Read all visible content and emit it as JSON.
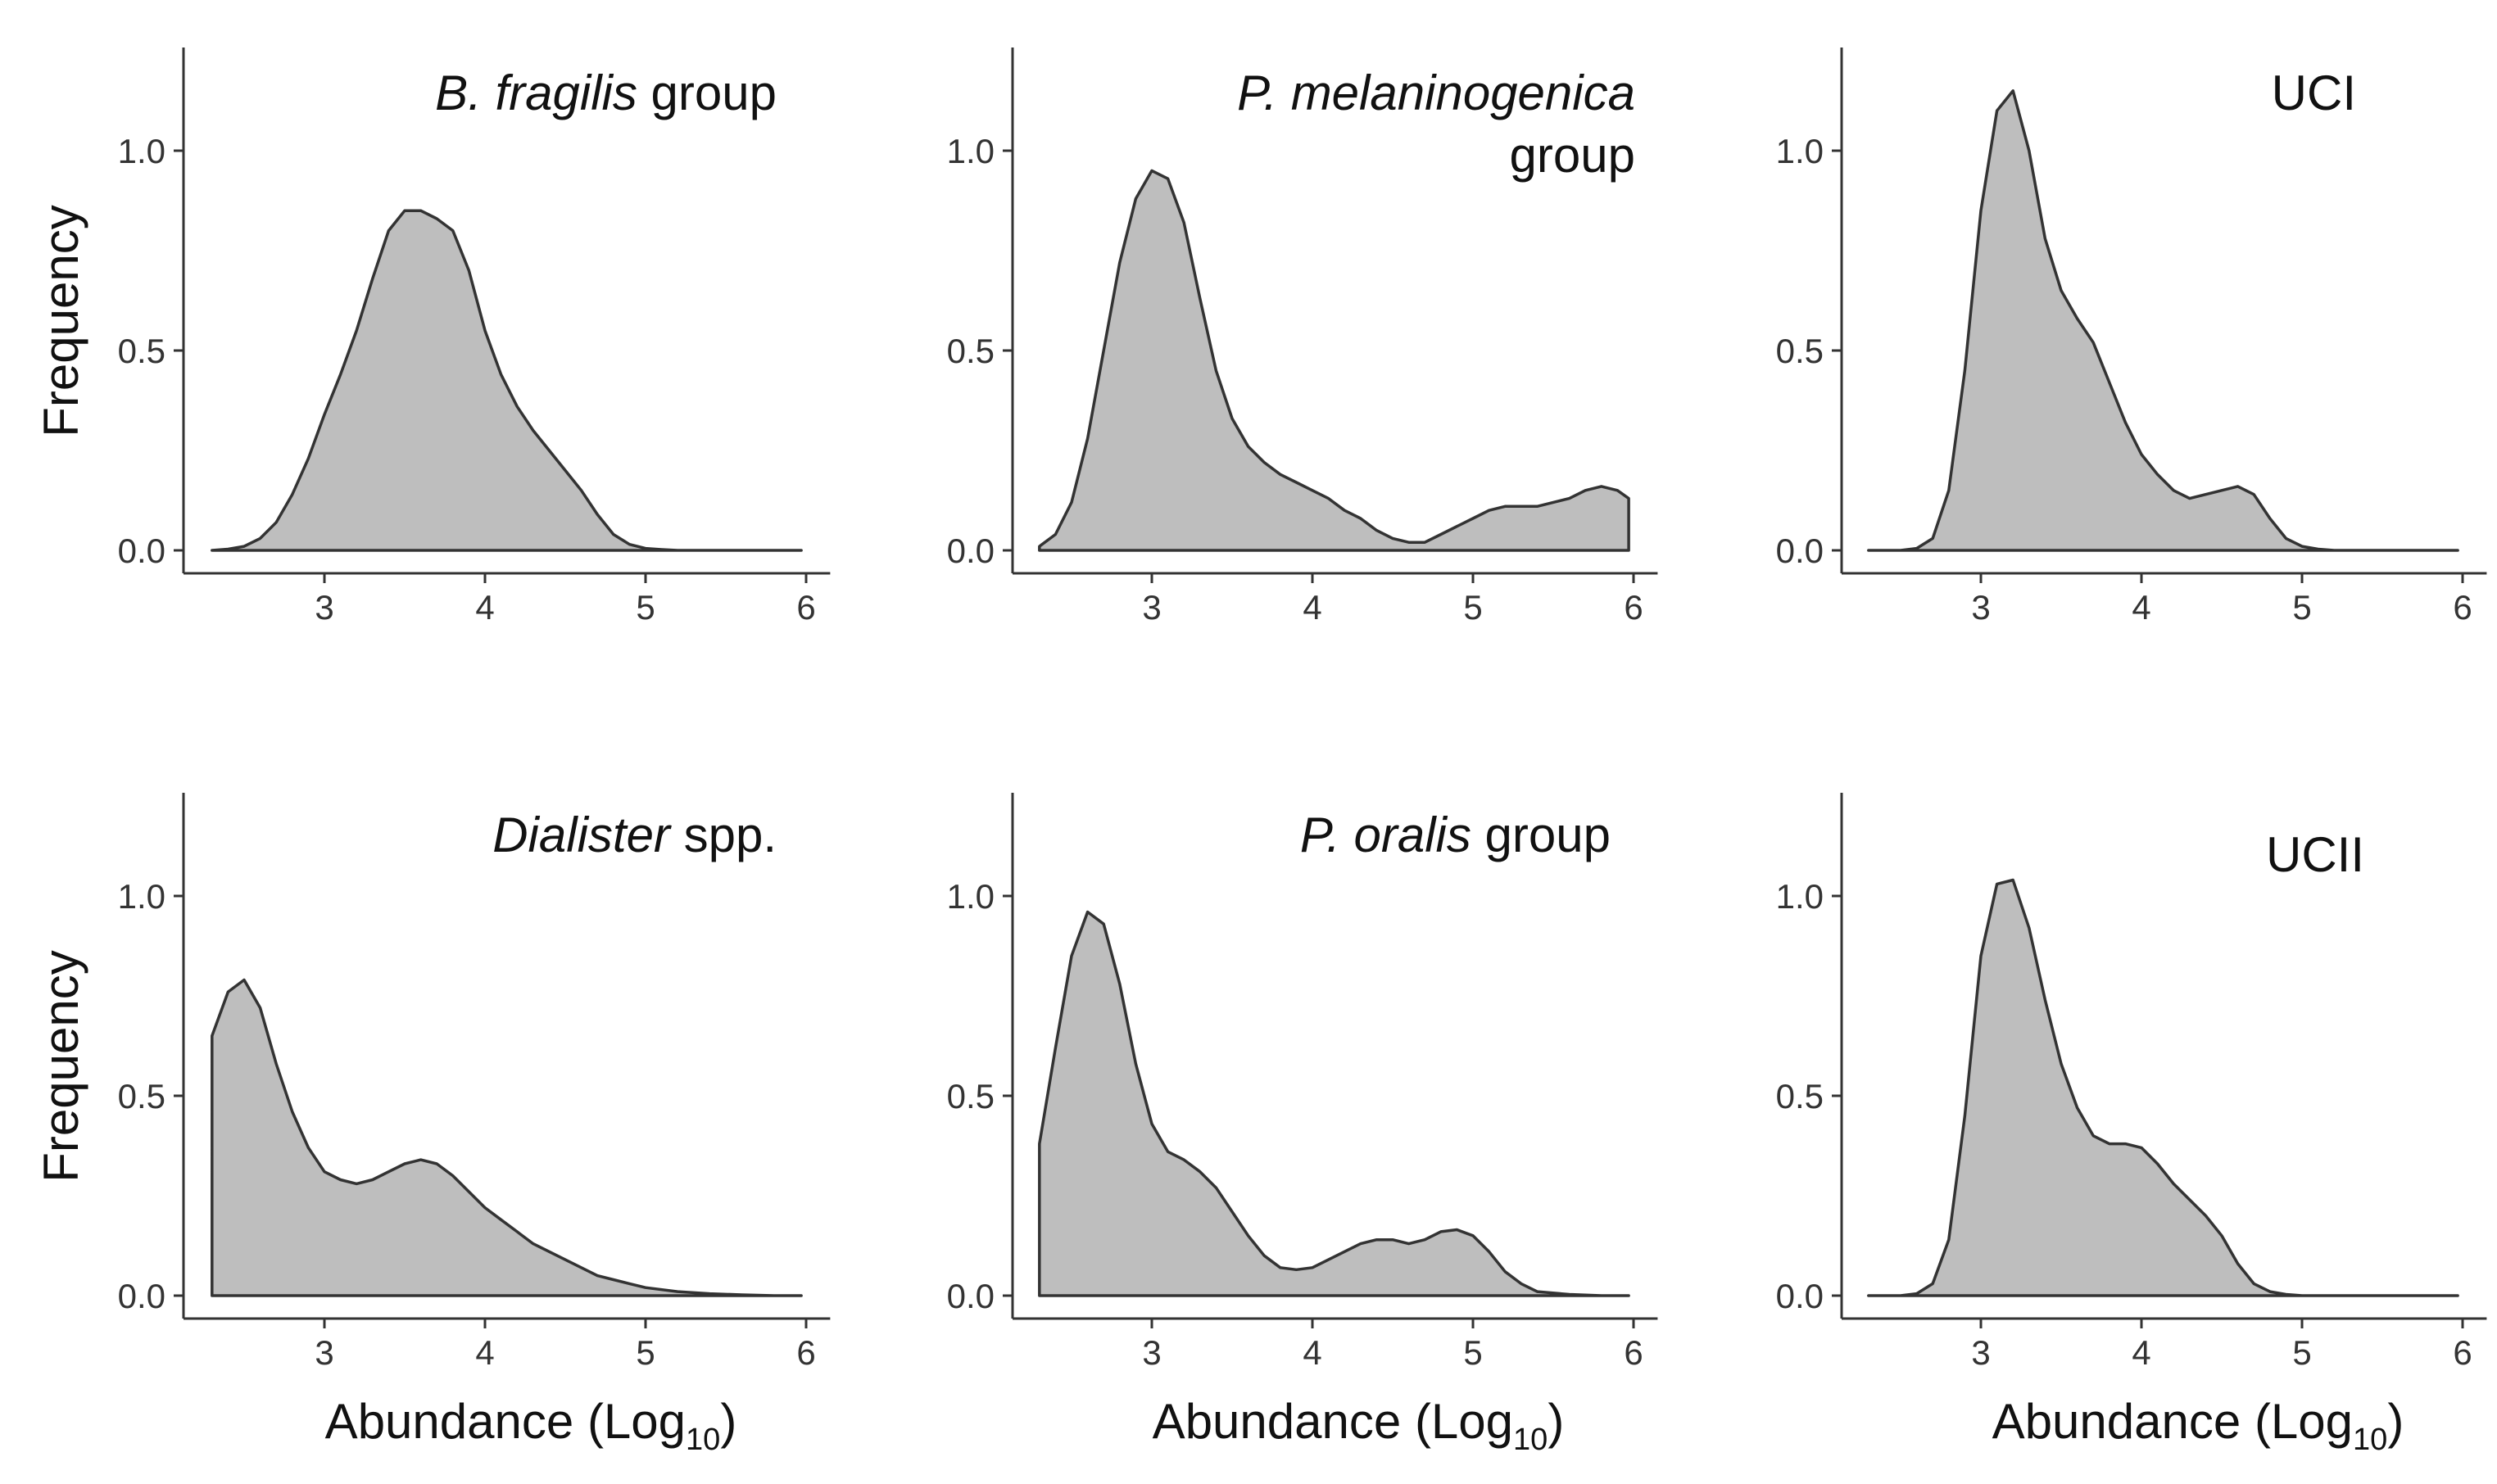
{
  "figure": {
    "ylabel": "Frequency",
    "xlabel_main": "Abundance (Log",
    "xlabel_sub": "10",
    "xlabel_close": ")"
  },
  "chart_data": [
    {
      "type": "area",
      "title_parts": [
        {
          "text": "B. fragilis",
          "italic": true
        },
        {
          "text": " group",
          "italic": false
        }
      ],
      "fill_color": "#bebebe",
      "line_color": "#333333",
      "xlim": [
        2.1,
        6.15
      ],
      "ylim": [
        -0.05,
        1.25
      ],
      "xticks": [
        3,
        4,
        5,
        6
      ],
      "yticks": [
        0.0,
        0.5,
        1.0
      ],
      "ytick_labels": [
        "0.0",
        "0.5",
        "1.0"
      ],
      "x": [
        2.3,
        2.4,
        2.5,
        2.6,
        2.7,
        2.8,
        2.9,
        3.0,
        3.1,
        3.2,
        3.3,
        3.4,
        3.5,
        3.6,
        3.7,
        3.8,
        3.9,
        4.0,
        4.1,
        4.2,
        4.3,
        4.4,
        4.5,
        4.6,
        4.7,
        4.8,
        4.9,
        5.0,
        5.1,
        5.2,
        5.4,
        5.6,
        5.8,
        5.97
      ],
      "y": [
        0.0,
        0.003,
        0.01,
        0.03,
        0.07,
        0.14,
        0.23,
        0.34,
        0.44,
        0.55,
        0.68,
        0.8,
        0.85,
        0.85,
        0.83,
        0.8,
        0.7,
        0.55,
        0.44,
        0.36,
        0.3,
        0.25,
        0.2,
        0.15,
        0.09,
        0.04,
        0.015,
        0.005,
        0.002,
        0.0,
        0.0,
        0.0,
        0.0,
        0.0
      ]
    },
    {
      "type": "area",
      "title_parts": [
        {
          "text": "P. melaninogenica",
          "italic": true
        },
        {
          "text": "group",
          "italic": false,
          "newline": true
        }
      ],
      "fill_color": "#bebebe",
      "line_color": "#333333",
      "xlim": [
        2.1,
        6.15
      ],
      "ylim": [
        -0.05,
        1.25
      ],
      "xticks": [
        3,
        4,
        5,
        6
      ],
      "yticks": [
        0.0,
        0.5,
        1.0
      ],
      "ytick_labels": [
        "0.0",
        "0.5",
        "1.0"
      ],
      "x": [
        2.3,
        2.4,
        2.5,
        2.6,
        2.7,
        2.8,
        2.9,
        3.0,
        3.1,
        3.2,
        3.3,
        3.4,
        3.5,
        3.6,
        3.7,
        3.8,
        3.9,
        4.0,
        4.1,
        4.2,
        4.3,
        4.4,
        4.5,
        4.6,
        4.7,
        4.8,
        4.9,
        5.0,
        5.1,
        5.2,
        5.3,
        5.4,
        5.5,
        5.6,
        5.7,
        5.8,
        5.9,
        5.97
      ],
      "y": [
        0.01,
        0.04,
        0.12,
        0.28,
        0.5,
        0.72,
        0.88,
        0.95,
        0.93,
        0.82,
        0.63,
        0.45,
        0.33,
        0.26,
        0.22,
        0.19,
        0.17,
        0.15,
        0.13,
        0.1,
        0.08,
        0.05,
        0.03,
        0.02,
        0.02,
        0.04,
        0.06,
        0.08,
        0.1,
        0.11,
        0.11,
        0.11,
        0.12,
        0.13,
        0.15,
        0.16,
        0.15,
        0.13
      ]
    },
    {
      "type": "area",
      "title_parts": [
        {
          "text": "UCI",
          "italic": false
        }
      ],
      "fill_color": "#bebebe",
      "line_color": "#333333",
      "xlim": [
        2.1,
        6.15
      ],
      "ylim": [
        -0.05,
        1.25
      ],
      "xticks": [
        3,
        4,
        5,
        6
      ],
      "yticks": [
        0.0,
        0.5,
        1.0
      ],
      "ytick_labels": [
        "0.0",
        "0.5",
        "1.0"
      ],
      "x": [
        2.3,
        2.5,
        2.6,
        2.7,
        2.8,
        2.9,
        3.0,
        3.1,
        3.2,
        3.3,
        3.4,
        3.5,
        3.6,
        3.7,
        3.8,
        3.9,
        4.0,
        4.1,
        4.2,
        4.3,
        4.4,
        4.5,
        4.6,
        4.7,
        4.8,
        4.9,
        5.0,
        5.1,
        5.2,
        5.4,
        5.6,
        5.8,
        5.97
      ],
      "y": [
        0.0,
        0.0,
        0.005,
        0.03,
        0.15,
        0.45,
        0.85,
        1.1,
        1.15,
        1.0,
        0.78,
        0.65,
        0.58,
        0.52,
        0.42,
        0.32,
        0.24,
        0.19,
        0.15,
        0.13,
        0.14,
        0.15,
        0.16,
        0.14,
        0.08,
        0.03,
        0.01,
        0.003,
        0.0,
        0.0,
        0.0,
        0.0,
        0.0
      ]
    },
    {
      "type": "area",
      "title_parts": [
        {
          "text": "Dialister",
          "italic": true
        },
        {
          "text": " spp.",
          "italic": false
        }
      ],
      "fill_color": "#bebebe",
      "line_color": "#333333",
      "xlim": [
        2.1,
        6.15
      ],
      "ylim": [
        -0.05,
        1.25
      ],
      "xticks": [
        3,
        4,
        5,
        6
      ],
      "yticks": [
        0.0,
        0.5,
        1.0
      ],
      "ytick_labels": [
        "0.0",
        "0.5",
        "1.0"
      ],
      "x": [
        2.3,
        2.4,
        2.5,
        2.6,
        2.7,
        2.8,
        2.9,
        3.0,
        3.1,
        3.2,
        3.3,
        3.4,
        3.5,
        3.6,
        3.7,
        3.8,
        3.9,
        4.0,
        4.1,
        4.2,
        4.3,
        4.4,
        4.5,
        4.6,
        4.7,
        4.8,
        4.9,
        5.0,
        5.2,
        5.4,
        5.6,
        5.8,
        5.97
      ],
      "y": [
        0.65,
        0.76,
        0.79,
        0.72,
        0.58,
        0.46,
        0.37,
        0.31,
        0.29,
        0.28,
        0.29,
        0.31,
        0.33,
        0.34,
        0.33,
        0.3,
        0.26,
        0.22,
        0.19,
        0.16,
        0.13,
        0.11,
        0.09,
        0.07,
        0.05,
        0.04,
        0.03,
        0.02,
        0.01,
        0.005,
        0.002,
        0.0,
        0.0
      ]
    },
    {
      "type": "area",
      "title_parts": [
        {
          "text": "P. oralis",
          "italic": true
        },
        {
          "text": " group",
          "italic": false
        }
      ],
      "fill_color": "#bebebe",
      "line_color": "#333333",
      "xlim": [
        2.1,
        6.15
      ],
      "ylim": [
        -0.05,
        1.25
      ],
      "xticks": [
        3,
        4,
        5,
        6
      ],
      "yticks": [
        0.0,
        0.5,
        1.0
      ],
      "ytick_labels": [
        "0.0",
        "0.5",
        "1.0"
      ],
      "x": [
        2.3,
        2.4,
        2.5,
        2.6,
        2.7,
        2.8,
        2.9,
        3.0,
        3.1,
        3.2,
        3.3,
        3.4,
        3.5,
        3.6,
        3.7,
        3.8,
        3.9,
        4.0,
        4.1,
        4.2,
        4.3,
        4.4,
        4.5,
        4.6,
        4.7,
        4.8,
        4.9,
        5.0,
        5.1,
        5.2,
        5.3,
        5.4,
        5.6,
        5.8,
        5.97
      ],
      "y": [
        0.38,
        0.62,
        0.85,
        0.96,
        0.93,
        0.78,
        0.58,
        0.43,
        0.36,
        0.34,
        0.31,
        0.27,
        0.21,
        0.15,
        0.1,
        0.07,
        0.065,
        0.07,
        0.09,
        0.11,
        0.13,
        0.14,
        0.14,
        0.13,
        0.14,
        0.16,
        0.165,
        0.15,
        0.11,
        0.06,
        0.03,
        0.01,
        0.003,
        0.0,
        0.0
      ]
    },
    {
      "type": "area",
      "title_parts": [
        {
          "text": "UCII",
          "italic": false
        }
      ],
      "fill_color": "#bebebe",
      "line_color": "#333333",
      "xlim": [
        2.1,
        6.15
      ],
      "ylim": [
        -0.05,
        1.25
      ],
      "xticks": [
        3,
        4,
        5,
        6
      ],
      "yticks": [
        0.0,
        0.5,
        1.0
      ],
      "ytick_labels": [
        "0.0",
        "0.5",
        "1.0"
      ],
      "x": [
        2.3,
        2.5,
        2.6,
        2.7,
        2.8,
        2.9,
        3.0,
        3.1,
        3.2,
        3.3,
        3.4,
        3.5,
        3.6,
        3.7,
        3.8,
        3.9,
        4.0,
        4.1,
        4.2,
        4.3,
        4.4,
        4.5,
        4.6,
        4.7,
        4.8,
        4.9,
        5.0,
        5.2,
        5.4,
        5.6,
        5.8,
        5.97
      ],
      "y": [
        0.0,
        0.0,
        0.005,
        0.03,
        0.14,
        0.45,
        0.85,
        1.03,
        1.04,
        0.92,
        0.74,
        0.58,
        0.47,
        0.4,
        0.38,
        0.38,
        0.37,
        0.33,
        0.28,
        0.24,
        0.2,
        0.15,
        0.08,
        0.03,
        0.01,
        0.003,
        0.0,
        0.0,
        0.0,
        0.0,
        0.0,
        0.0
      ]
    }
  ]
}
